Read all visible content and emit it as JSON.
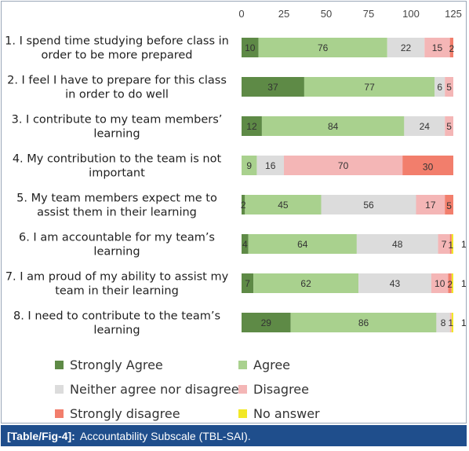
{
  "caption": {
    "ref": "[Table/Fig-4]:",
    "text": "Accountability Subscale (TBL-SAI)."
  },
  "chart_data": {
    "type": "stacked-horizontal-bar",
    "title": "",
    "xlabel": "",
    "ylabel": "",
    "xlim": [
      0,
      125
    ],
    "xticks": [
      "0",
      "25",
      "50",
      "75",
      "100",
      "125"
    ],
    "xtick_values": [
      0,
      25,
      50,
      75,
      100,
      125
    ],
    "grid": false,
    "legend_position": "bottom",
    "categories": [
      [
        "1. I spend time studying before class in",
        "order to be more prepared"
      ],
      [
        "2. I feel I have to prepare for this class",
        "in order to do well"
      ],
      [
        "3. I contribute to my team members’",
        "learning"
      ],
      [
        "4. My contribution to the team is not",
        "important"
      ],
      [
        "5. My team members expect me to",
        "assist them in their learning"
      ],
      [
        "6. I am accountable for my team’s",
        "learning"
      ],
      [
        "7. I am proud of my ability to assist my",
        "team in their learning"
      ],
      [
        "8. I need to contribute to the team’s",
        "learning"
      ]
    ],
    "series": [
      {
        "name": "Strongly Agree",
        "color": "#5e8a46",
        "values": [
          10,
          37,
          12,
          0,
          2,
          4,
          7,
          29
        ]
      },
      {
        "name": "Agree",
        "color": "#a9d18e",
        "values": [
          76,
          77,
          84,
          9,
          45,
          64,
          62,
          86
        ]
      },
      {
        "name": "Neither agree nor disagree",
        "color": "#dcdcdc",
        "values": [
          22,
          6,
          24,
          16,
          56,
          48,
          43,
          8
        ]
      },
      {
        "name": "Disagree",
        "color": "#f4b6b6",
        "values": [
          15,
          5,
          5,
          70,
          17,
          7,
          10,
          1
        ]
      },
      {
        "name": "Strongly disagree",
        "color": "#f27e6c",
        "values": [
          2,
          0,
          0,
          30,
          5,
          1,
          2,
          0
        ]
      },
      {
        "name": "No answer",
        "color": "#f2e826",
        "values": [
          0,
          0,
          0,
          0,
          0,
          1,
          1,
          1
        ]
      }
    ],
    "value_labels": [
      [
        "10",
        "76",
        "22",
        "15",
        "2",
        ""
      ],
      [
        "37",
        "77",
        "6",
        "5",
        "",
        ""
      ],
      [
        "12",
        "84",
        "24",
        "5",
        "",
        ""
      ],
      [
        "",
        "9",
        "16",
        "70",
        "30",
        ""
      ],
      [
        "2",
        "45",
        "56",
        "17",
        "5",
        ""
      ],
      [
        "4",
        "64",
        "48",
        "7",
        "1",
        "1"
      ],
      [
        "7",
        "62",
        "43",
        "10",
        "2",
        "1"
      ],
      [
        "29",
        "86",
        "8",
        "1",
        "",
        "1"
      ]
    ]
  }
}
